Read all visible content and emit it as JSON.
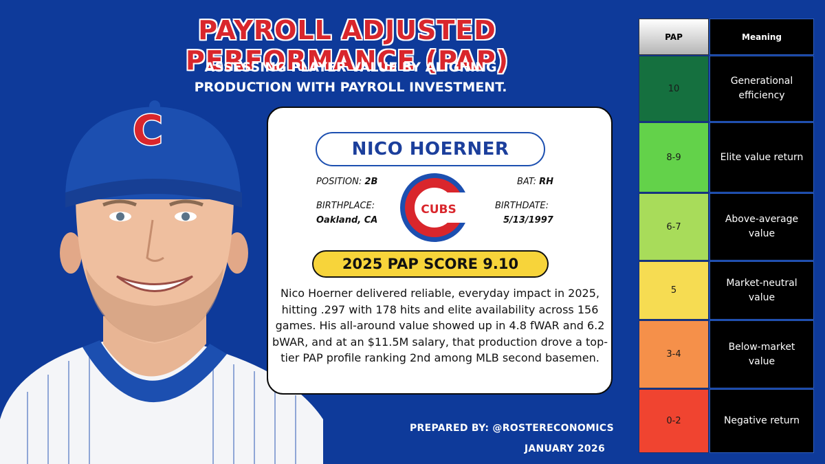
{
  "header": {
    "title": "PAYROLL ADJUSTED PERFORMANCE (PAP)",
    "subtitle_line1": "ASSESSING PLAYER VALUE BY ALIGNING",
    "subtitle_line2": "PRODUCTION WITH PAYROLL INVESTMENT."
  },
  "player": {
    "name": "NICO HOERNER",
    "position_label": "POSITION:",
    "position": "2B",
    "bat_label": "BAT:",
    "bat": "RH",
    "birthplace_label": "BIRTHPLACE:",
    "birthplace": "Oakland, CA",
    "birthdate_label": "BIRTHDATE:",
    "birthdate": "5/13/1997",
    "team_logo_text": "CUBS",
    "cap_logo_text": "C"
  },
  "score": {
    "label": "2025 PAP SCORE 9.10"
  },
  "blurb": "Nico Hoerner delivered reliable, everyday impact in 2025, hitting .297 with 178 hits and elite availability across 156 games. His all-around value showed up in 4.8 fWAR and 6.2 bWAR, and at an $11.5M salary, that production drove a top-tier PAP profile ranking 2nd among MLB second basemen.",
  "footer": {
    "prepared_by": "PREPARED BY: @ROSTERECONOMICS",
    "date": "JANUARY 2026"
  },
  "legend": {
    "col_pap": "PAP",
    "col_meaning": "Meaning",
    "rows": [
      {
        "pap": "10",
        "meaning": "Generational efficiency",
        "color": "#15703f"
      },
      {
        "pap": "8-9",
        "meaning": "Elite value return",
        "color": "#63d24a"
      },
      {
        "pap": "6-7",
        "meaning": "Above-average value",
        "color": "#a8dc5a"
      },
      {
        "pap": "5",
        "meaning": "Market-neutral value",
        "color": "#f6dc52"
      },
      {
        "pap": "3-4",
        "meaning": "Below-market value",
        "color": "#f5904a"
      },
      {
        "pap": "0-2",
        "meaning": "Negative return",
        "color": "#f04430"
      }
    ]
  },
  "colors": {
    "background": "#0e3a9a",
    "title_red": "#d9262c",
    "cubs_blue": "#1c4fb0",
    "score_yellow": "#f7d43a"
  }
}
